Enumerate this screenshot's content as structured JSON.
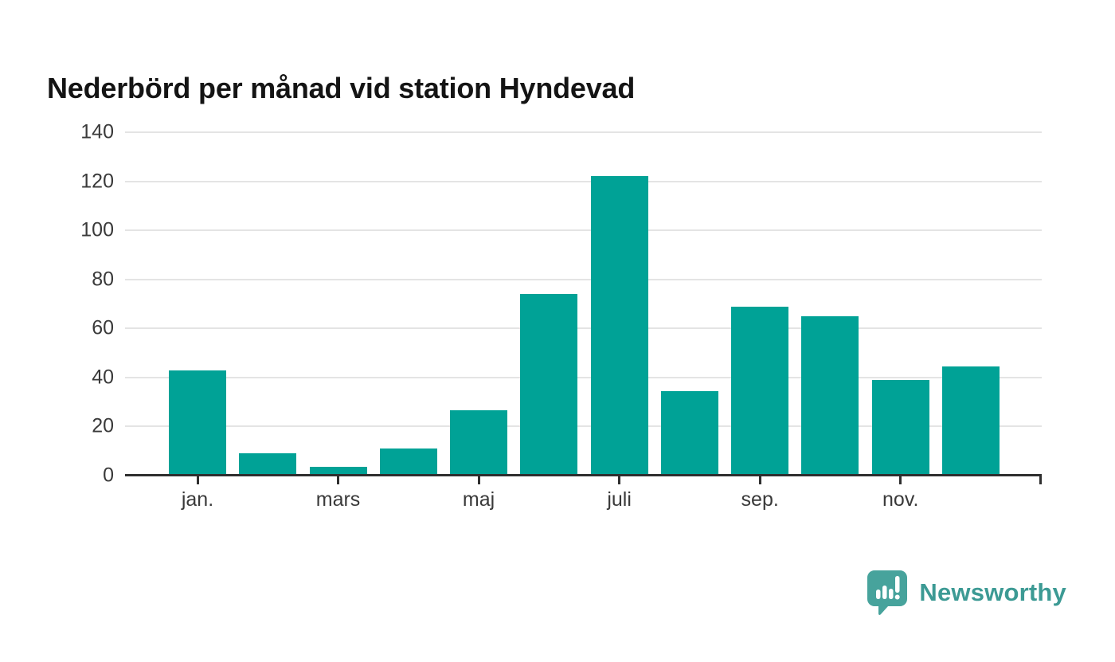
{
  "page": {
    "background": "#ffffff"
  },
  "branding": {
    "text": "Newsworthy"
  },
  "colors": {
    "bar": "#00a296",
    "logo_icon": "#47a39c",
    "logo_text": "#3c9a94",
    "grid": "#e4e4e4",
    "axis": "#2f2f2f",
    "tick_label": "#3a3a3a",
    "title": "#141414"
  },
  "chart_data": {
    "type": "bar",
    "title": "Nederbörd per månad vid station Hyndevad",
    "n_bars": 12,
    "values": [
      43,
      9,
      3.5,
      11,
      26.5,
      74,
      122,
      34.5,
      69,
      65,
      39,
      44.5
    ],
    "x_tick_labels": [
      {
        "bar_index": 0,
        "label": "jan."
      },
      {
        "bar_index": 2,
        "label": "mars"
      },
      {
        "bar_index": 4,
        "label": "maj"
      },
      {
        "bar_index": 6,
        "label": "juli"
      },
      {
        "bar_index": 8,
        "label": "sep."
      },
      {
        "bar_index": 10,
        "label": "nov."
      }
    ],
    "end_tick_at_axis_right": true,
    "ylim": [
      0,
      140
    ],
    "yticks": [
      0,
      20,
      40,
      60,
      80,
      100,
      120,
      140
    ],
    "xlabel": "",
    "ylabel": "",
    "grid": "horizontal",
    "legend": "none"
  }
}
